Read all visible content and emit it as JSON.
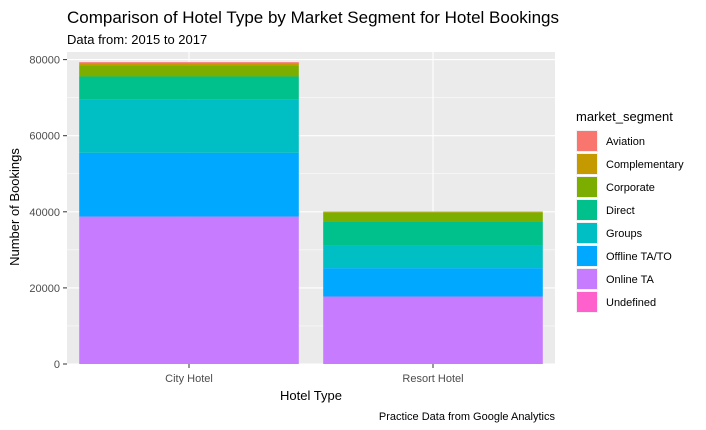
{
  "chart_data": {
    "type": "bar",
    "stacked": true,
    "title": "Comparison of Hotel Type by Market Segment for Hotel Bookings",
    "subtitle": "Data from: 2015 to 2017",
    "caption": "Practice Data from Google Analytics",
    "xlabel": "Hotel Type",
    "ylabel": "Number of Bookings",
    "categories": [
      "City Hotel",
      "Resort Hotel"
    ],
    "ylim": [
      0,
      82000
    ],
    "yticks": [
      0,
      20000,
      40000,
      60000,
      80000
    ],
    "ytick_labels": [
      "0",
      "20000",
      "40000",
      "60000",
      "80000"
    ],
    "grid": true,
    "legend": {
      "title": "market_segment",
      "position": "right"
    },
    "series": [
      {
        "name": "Aviation",
        "color": "#F8766D",
        "values": [
          229,
          0
        ]
      },
      {
        "name": "Complementary",
        "color": "#C49A00",
        "values": [
          542,
          201
        ]
      },
      {
        "name": "Corporate",
        "color": "#7CAE00",
        "values": [
          2986,
          2309
        ]
      },
      {
        "name": "Direct",
        "color": "#00C08B",
        "values": [
          6093,
          6513
        ]
      },
      {
        "name": "Groups",
        "color": "#00BFC4",
        "values": [
          13975,
          5836
        ]
      },
      {
        "name": "Offline TA/TO",
        "color": "#00A9FF",
        "values": [
          16747,
          7472
        ]
      },
      {
        "name": "Online TA",
        "color": "#C77CFF",
        "values": [
          38748,
          17729
        ]
      },
      {
        "name": "Undefined",
        "color": "#FF61CC",
        "values": [
          2,
          0
        ]
      }
    ]
  }
}
